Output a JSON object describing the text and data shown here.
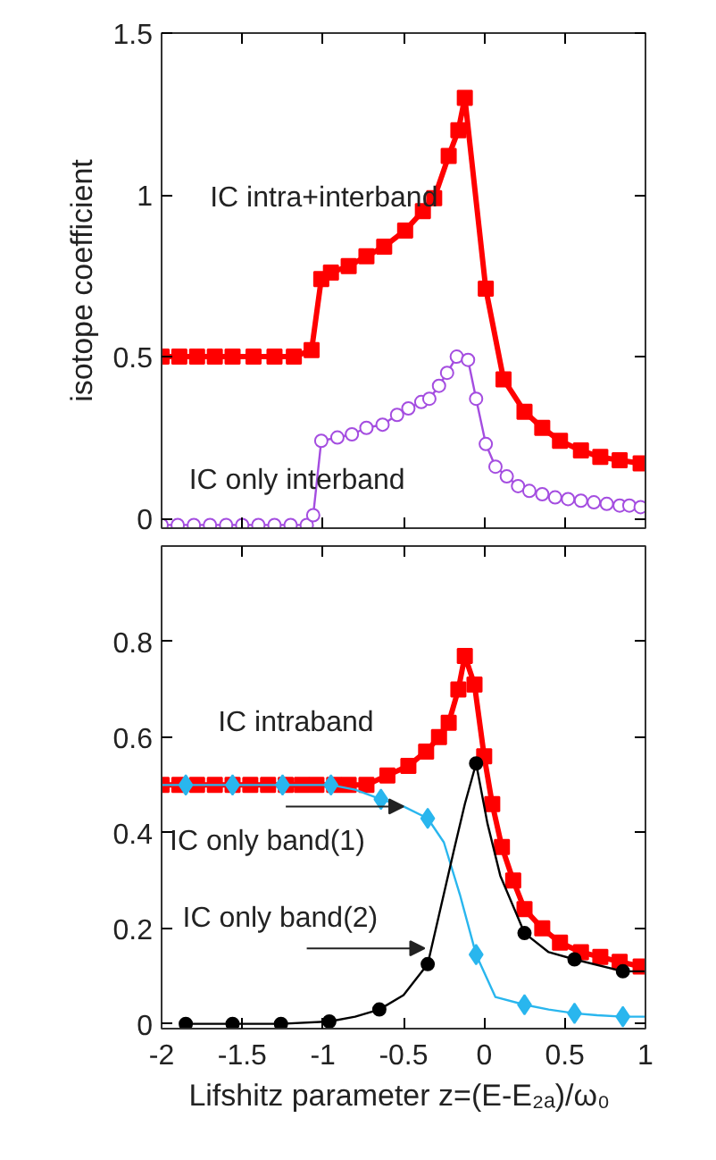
{
  "chart_data": [
    {
      "type": "line",
      "ylabel": "isotope coefficient",
      "xlim": [
        -2,
        1
      ],
      "xticks": [
        -2,
        -1.5,
        -1,
        -0.5,
        0,
        0.5,
        1
      ],
      "ylim": [
        -0.03,
        1.5
      ],
      "yticks": [
        0,
        0.5,
        1,
        1.5
      ],
      "tick_labels": "y",
      "grid": false,
      "annotations": [
        "IC intra+interband",
        "IC only interband"
      ],
      "series": [
        {
          "marker": "square",
          "color": "#ff0000",
          "x": [
            -2,
            -1.89,
            -1.78,
            -1.67,
            -1.56,
            -1.43,
            -1.3,
            -1.18,
            -1.07,
            -1.01,
            -0.95,
            -0.84,
            -0.73,
            -0.62,
            -0.49,
            -0.38,
            -0.31,
            -0.22,
            -0.16,
            -0.12,
            0.01,
            0.12,
            0.25,
            0.36,
            0.47,
            0.6,
            0.72,
            0.84,
            0.97
          ],
          "values": [
            0.5,
            0.5,
            0.5,
            0.5,
            0.5,
            0.5,
            0.5,
            0.5,
            0.52,
            0.74,
            0.76,
            0.78,
            0.81,
            0.84,
            0.89,
            0.95,
            0.99,
            1.12,
            1.2,
            1.3,
            0.71,
            0.43,
            0.33,
            0.28,
            0.24,
            0.21,
            0.19,
            0.18,
            0.17
          ]
        },
        {
          "marker": "circle",
          "color": "#a44de0",
          "x": [
            -2,
            -1.9,
            -1.8,
            -1.7,
            -1.6,
            -1.5,
            -1.4,
            -1.3,
            -1.2,
            -1.1,
            -1.06,
            -1.01,
            -0.91,
            -0.82,
            -0.73,
            -0.63,
            -0.54,
            -0.47,
            -0.39,
            -0.34,
            -0.28,
            -0.23,
            -0.17,
            -0.1,
            -0.05,
            0.01,
            0.07,
            0.14,
            0.21,
            0.28,
            0.36,
            0.44,
            0.52,
            0.6,
            0.68,
            0.76,
            0.84,
            0.9,
            0.97
          ],
          "values": [
            -0.02,
            -0.02,
            -0.02,
            -0.02,
            -0.02,
            -0.02,
            -0.02,
            -0.02,
            -0.02,
            -0.02,
            0.01,
            0.24,
            0.25,
            0.26,
            0.28,
            0.29,
            0.32,
            0.34,
            0.36,
            0.37,
            0.41,
            0.45,
            0.5,
            0.49,
            0.37,
            0.23,
            0.16,
            0.13,
            0.1,
            0.085,
            0.075,
            0.065,
            0.06,
            0.055,
            0.05,
            0.045,
            0.04,
            0.04,
            0.035
          ]
        }
      ]
    },
    {
      "type": "line",
      "xlabel": "Lifshitz  parameter z=(E-E₂ₐ)/ω₀",
      "xlim": [
        -2,
        1
      ],
      "xticks": [
        -2,
        -1.5,
        -1,
        -0.5,
        0,
        0.5,
        1
      ],
      "ylim": [
        -0.01,
        1.0
      ],
      "yticks": [
        0,
        0.2,
        0.4,
        0.6,
        0.8
      ],
      "grid": false,
      "annotations": [
        "IC intraband",
        {
          "text": "IC only band(1)",
          "x": -0.5,
          "y": 0.455
        },
        {
          "text": "IC only band(2)",
          "x": -0.37,
          "y": 0.158
        }
      ],
      "series": [
        {
          "marker": "square",
          "color": "#ff0000",
          "x": [
            -2,
            -1.89,
            -1.78,
            -1.67,
            -1.56,
            -1.45,
            -1.34,
            -1.23,
            -1.13,
            -1.04,
            -0.93,
            -0.84,
            -0.73,
            -0.6,
            -0.47,
            -0.36,
            -0.28,
            -0.22,
            -0.16,
            -0.12,
            -0.06,
            0,
            0.05,
            0.11,
            0.18,
            0.25,
            0.36,
            0.47,
            0.6,
            0.72,
            0.84,
            0.97
          ],
          "values": [
            0.5,
            0.5,
            0.5,
            0.5,
            0.5,
            0.5,
            0.5,
            0.5,
            0.5,
            0.5,
            0.5,
            0.5,
            0.5,
            0.52,
            0.54,
            0.57,
            0.6,
            0.63,
            0.7,
            0.77,
            0.71,
            0.56,
            0.46,
            0.37,
            0.3,
            0.24,
            0.2,
            0.17,
            0.15,
            0.14,
            0.13,
            0.12
          ]
        },
        {
          "marker": "none",
          "color": "#29b6ee",
          "x": [
            -2,
            -1.85,
            -1.56,
            -1.25,
            -0.95,
            -0.8,
            -0.64,
            -0.5,
            -0.35,
            -0.25,
            -0.15,
            -0.05,
            0.07,
            0.25,
            0.4,
            0.56,
            0.7,
            0.86,
            1.0
          ],
          "values": [
            0.5,
            0.5,
            0.5,
            0.5,
            0.5,
            0.49,
            0.47,
            0.455,
            0.43,
            0.38,
            0.27,
            0.145,
            0.056,
            0.04,
            0.03,
            0.022,
            0.018,
            0.015,
            0.015
          ]
        },
        {
          "type": "scatter",
          "marker": "diamond",
          "color": "#29b6ee",
          "x": [
            -1.85,
            -1.56,
            -1.25,
            -0.95,
            -0.64,
            -0.35,
            -0.05,
            0.25,
            0.56,
            0.86
          ],
          "values": [
            0.5,
            0.5,
            0.5,
            0.5,
            0.47,
            0.43,
            0.145,
            0.04,
            0.022,
            0.015
          ]
        },
        {
          "marker": "none",
          "color": "#000000",
          "x": [
            -1.85,
            -1.56,
            -1.26,
            -0.96,
            -0.8,
            -0.65,
            -0.5,
            -0.35,
            -0.19,
            -0.12,
            -0.05,
            0.02,
            0.1,
            0.25,
            0.4,
            0.56,
            0.86,
            1.0
          ],
          "values": [
            0,
            0,
            0,
            0.005,
            0.015,
            0.03,
            0.06,
            0.125,
            0.36,
            0.46,
            0.545,
            0.42,
            0.31,
            0.19,
            0.15,
            0.135,
            0.11,
            0.11
          ]
        },
        {
          "type": "scatter",
          "marker": "circle",
          "color": "#000000",
          "x": [
            -1.85,
            -1.56,
            -1.26,
            -0.96,
            -0.65,
            -0.35,
            -0.05,
            0.25,
            0.56,
            0.86
          ],
          "values": [
            0,
            0,
            0,
            0.005,
            0.03,
            0.125,
            0.545,
            0.19,
            0.135,
            0.11
          ]
        }
      ]
    }
  ]
}
